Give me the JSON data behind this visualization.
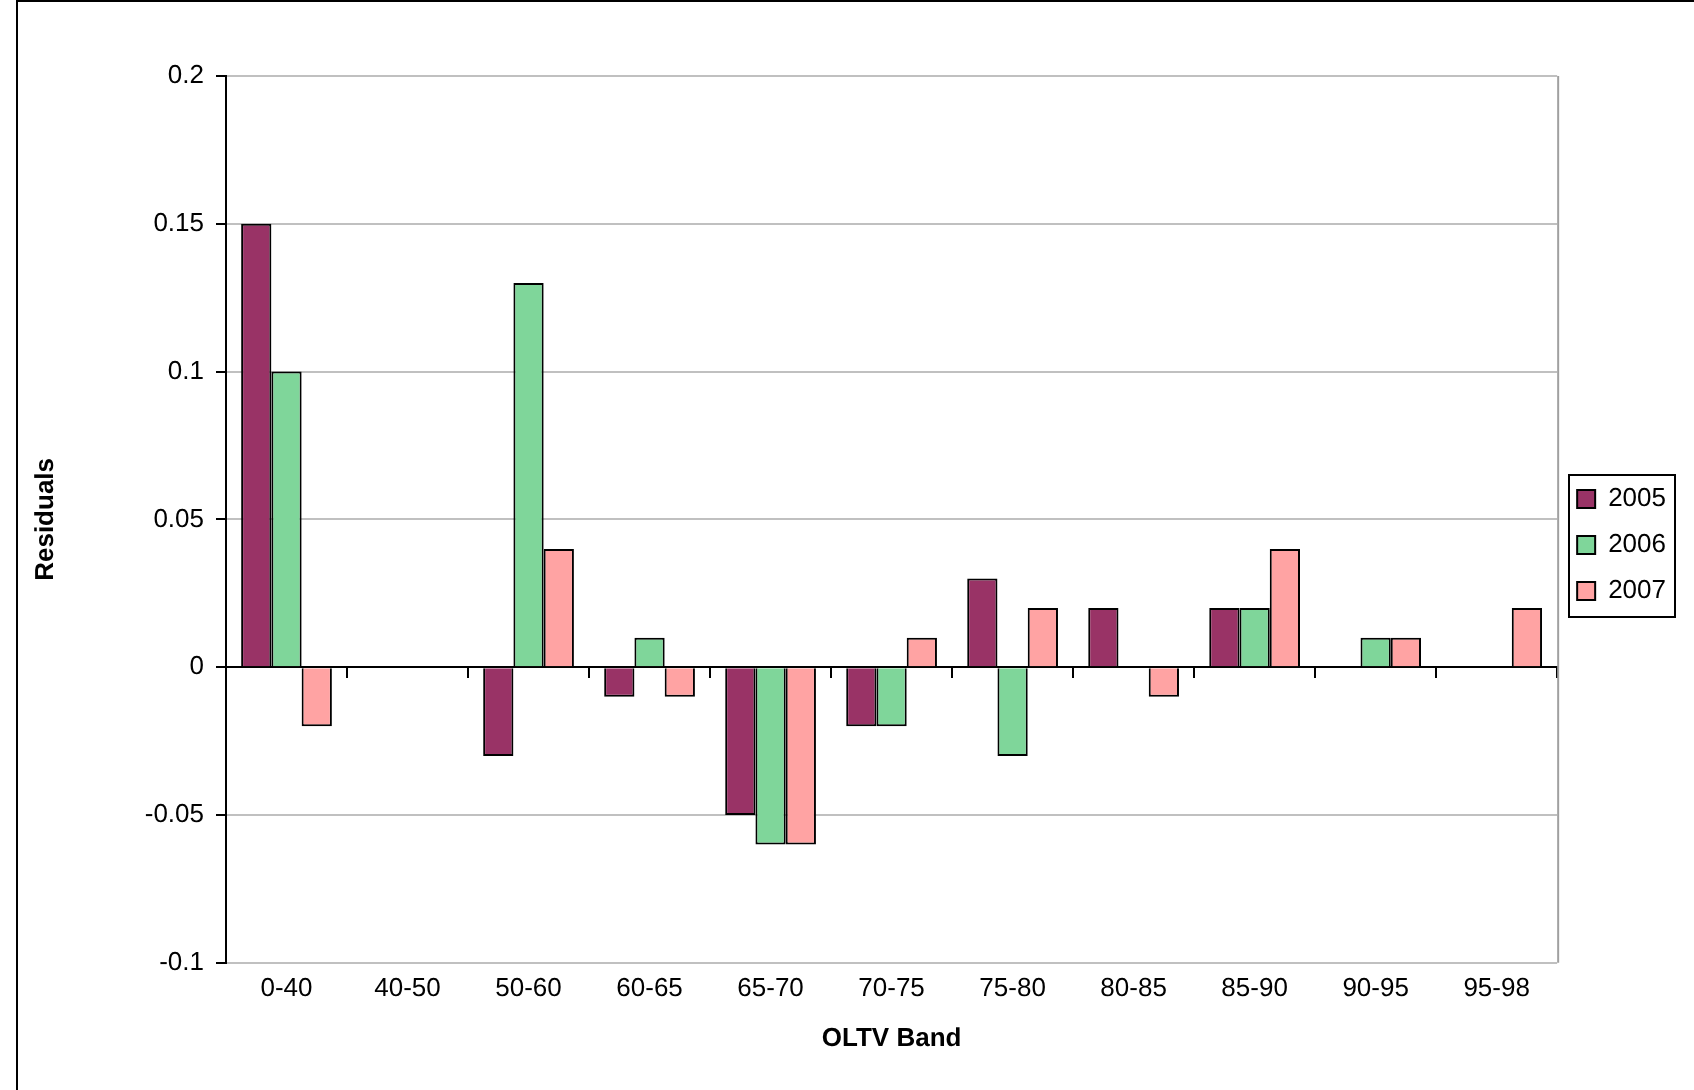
{
  "chart_data": {
    "type": "bar",
    "xlabel": "OLTV Band",
    "ylabel": "Residuals",
    "categories": [
      "0-40",
      "40-50",
      "50-60",
      "60-65",
      "65-70",
      "70-75",
      "75-80",
      "80-85",
      "85-90",
      "90-95",
      "95-98"
    ],
    "series": [
      {
        "name": "2005",
        "color": "#993366",
        "values": [
          0.15,
          null,
          -0.03,
          -0.01,
          -0.05,
          -0.02,
          0.03,
          0.02,
          0.02,
          null,
          null
        ]
      },
      {
        "name": "2006",
        "color": "#7fd69a",
        "values": [
          0.1,
          null,
          0.13,
          0.01,
          -0.06,
          -0.02,
          -0.03,
          null,
          0.02,
          0.01,
          null
        ]
      },
      {
        "name": "2007",
        "color": "#ffa3a3",
        "values": [
          -0.02,
          null,
          0.04,
          -0.01,
          -0.06,
          0.01,
          0.02,
          -0.01,
          0.04,
          0.01,
          0.02
        ]
      }
    ],
    "ylim": [
      -0.1,
      0.2
    ],
    "yticks": [
      -0.1,
      -0.05,
      0,
      0.05,
      0.1,
      0.15,
      0.2
    ],
    "grid": "y",
    "legend": "right"
  }
}
